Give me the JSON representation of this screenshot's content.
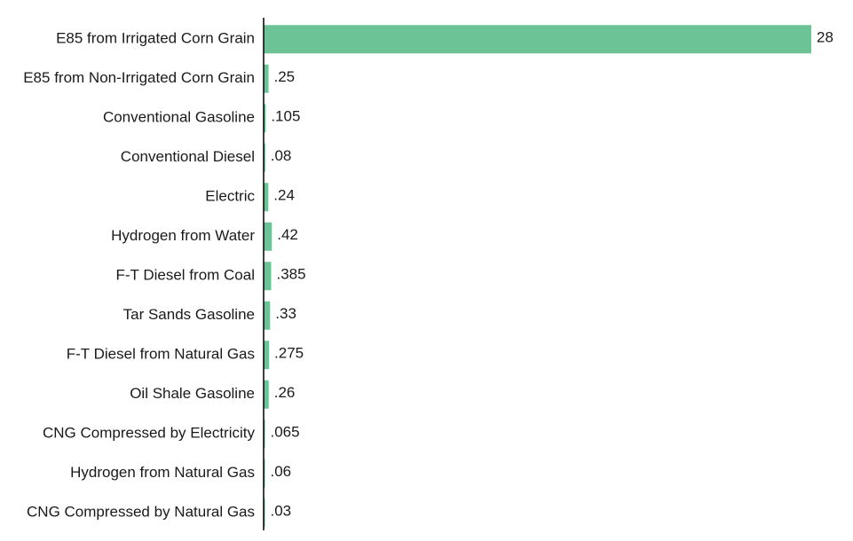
{
  "chart_data": {
    "type": "bar",
    "orientation": "horizontal",
    "categories": [
      "E85 from Irrigated Corn Grain",
      "E85 from Non-Irrigated Corn Grain",
      "Conventional Gasoline",
      "Conventional Diesel",
      "Electric",
      "Hydrogen from Water",
      "F-T Diesel from Coal",
      "Tar Sands Gasoline",
      "F-T Diesel from Natural Gas",
      "Oil Shale Gasoline",
      "CNG Compressed by Electricity",
      "Hydrogen from Natural Gas",
      "CNG Compressed by Natural Gas"
    ],
    "values": [
      28,
      0.25,
      0.105,
      0.08,
      0.24,
      0.42,
      0.385,
      0.33,
      0.275,
      0.26,
      0.065,
      0.06,
      0.03
    ],
    "value_labels": [
      "28",
      ".25",
      ".105",
      ".08",
      ".24",
      ".42",
      ".385",
      ".33",
      ".275",
      ".26",
      ".065",
      ".06",
      ".03"
    ],
    "xlim": [
      0,
      28
    ],
    "grid": false,
    "legend": "none",
    "bar_color": "#6cc396",
    "axis_color": "#000000"
  }
}
